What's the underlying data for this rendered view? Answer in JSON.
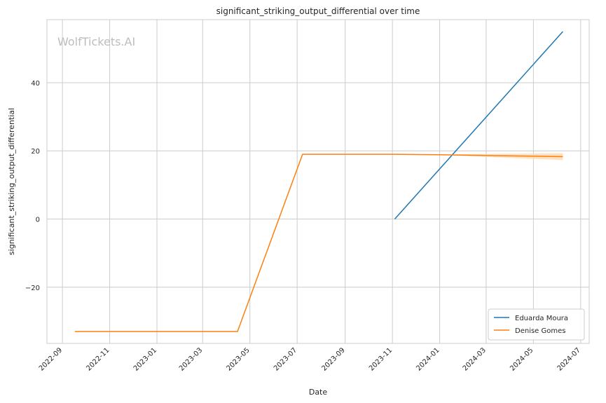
{
  "watermark": "WolfTickets.AI",
  "chart_data": {
    "type": "line",
    "title": "significant_striking_output_differential over time",
    "xlabel": "Date",
    "ylabel": "significant_striking_output_differential",
    "x_ticks": [
      "2022-09",
      "2022-11",
      "2023-01",
      "2023-03",
      "2023-05",
      "2023-07",
      "2023-09",
      "2023-11",
      "2024-01",
      "2024-03",
      "2024-05",
      "2024-07"
    ],
    "y_ticks": [
      -20,
      0,
      20,
      40
    ],
    "ylim": [
      -36.5,
      58.5
    ],
    "grid": true,
    "legend_position": "bottom-right",
    "series": [
      {
        "name": "Eduarda Moura",
        "color": "#1f77b4",
        "points": [
          [
            "2023-11-04",
            0
          ],
          [
            "2024-06-08",
            55
          ]
        ]
      },
      {
        "name": "Denise Gomes",
        "color": "#ff7f0e",
        "band_color": "#ffd9b3",
        "points": [
          [
            "2022-09-17",
            -33
          ],
          [
            "2023-04-15",
            -33
          ],
          [
            "2023-07-08",
            19
          ],
          [
            "2023-11-04",
            19
          ],
          [
            "2024-01-20",
            18.8
          ],
          [
            "2024-06-08",
            18.3
          ]
        ],
        "band": [
          [
            "2024-01-20",
            18.6,
            19.0
          ],
          [
            "2024-06-08",
            17.3,
            19.3
          ]
        ]
      }
    ]
  }
}
